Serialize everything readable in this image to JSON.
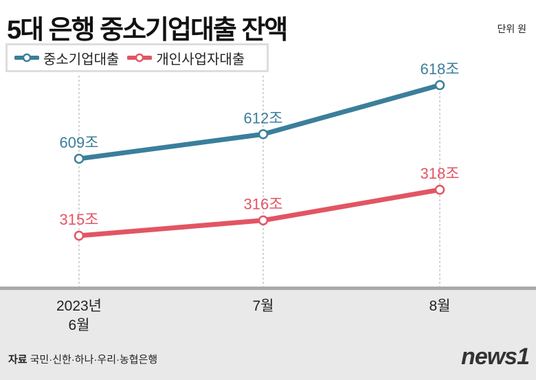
{
  "chart_data": {
    "type": "line",
    "title": "5대 은행 중소기업대출 잔액",
    "unit": "단위 원",
    "categories": [
      "2023년\n6월",
      "7월",
      "8월"
    ],
    "category_lines": [
      [
        "2023년",
        "6월"
      ],
      [
        "7월"
      ],
      [
        "8월"
      ]
    ],
    "series": [
      {
        "name": "중소기업대출",
        "values": [
          609,
          612,
          618
        ],
        "labels": [
          "609조",
          "612조",
          "618조"
        ],
        "color": "#3a7f9b"
      },
      {
        "name": "개인사업자대출",
        "values": [
          315,
          316,
          318
        ],
        "labels": [
          "315조",
          "316조",
          "318조"
        ],
        "color": "#e25563"
      }
    ],
    "grid": "vertical dashed at categories",
    "legend": "top-left"
  },
  "source_label": "자료",
  "source": "국민·신한·하나·우리·농협은행",
  "logo": "news1"
}
